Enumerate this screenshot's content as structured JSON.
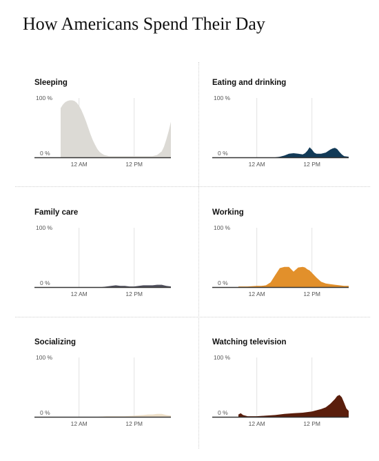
{
  "title": "How Americans Spend Their Day",
  "colors": {
    "axis": "#333333",
    "grid": "#e2e2e2",
    "tick_text": "#555555"
  },
  "chart_data": [
    {
      "type": "area",
      "title": "Sleeping",
      "color": "#dcdad5",
      "ylim": [
        0,
        100
      ],
      "y_tick_labels": [
        "100 %",
        "0 %"
      ],
      "x_tick_labels": [
        "12 AM",
        "12 PM"
      ],
      "x_ticks_hours": [
        0,
        12
      ],
      "x_range_hours": [
        -4,
        20
      ],
      "grid": "vertical-at-ticks",
      "x": [
        -4,
        -3.5,
        -3,
        -2.5,
        -2,
        -1.5,
        -1,
        -0.5,
        0,
        0.5,
        1,
        1.5,
        2,
        2.5,
        3,
        3.5,
        4,
        4.5,
        5,
        5.5,
        6,
        6.5,
        7,
        7.5,
        8,
        8.5,
        9,
        9.5,
        10,
        10.5,
        11,
        11.5,
        12,
        13,
        14,
        15,
        16,
        17,
        18,
        18.5,
        19,
        19.5,
        20
      ],
      "values": [
        83,
        89,
        93,
        95,
        96,
        96,
        95,
        92,
        87,
        80,
        71,
        61,
        50,
        39,
        29,
        21,
        14,
        9,
        6,
        4,
        3,
        2,
        2,
        2,
        2,
        2,
        2,
        2,
        2,
        2,
        2,
        2,
        2,
        2,
        2,
        2,
        2,
        4,
        10,
        18,
        30,
        44,
        60
      ]
    },
    {
      "type": "area",
      "title": "Eating and drinking",
      "color": "#123a57",
      "ylim": [
        0,
        100
      ],
      "y_tick_labels": [
        "100 %",
        "0 %"
      ],
      "x_tick_labels": [
        "12 AM",
        "12 PM"
      ],
      "x_ticks_hours": [
        0,
        12
      ],
      "x_range_hours": [
        -4,
        20
      ],
      "grid": "vertical-at-ticks",
      "x": [
        -4,
        -3,
        -2,
        -1,
        0,
        1,
        2,
        3,
        4,
        5,
        6,
        7,
        8,
        9,
        10,
        10.5,
        11,
        11.5,
        12,
        12.5,
        13,
        13.5,
        14,
        15,
        16,
        16.5,
        17,
        17.5,
        18,
        18.5,
        19,
        20
      ],
      "values": [
        0,
        0,
        0,
        0,
        0,
        0,
        0,
        0,
        0,
        1,
        3,
        6,
        7,
        6,
        5,
        7,
        11,
        17,
        13,
        8,
        6,
        6,
        6,
        8,
        13,
        15,
        16,
        14,
        9,
        5,
        2,
        1
      ]
    },
    {
      "type": "area",
      "title": "Family care",
      "color": "#52525f",
      "ylim": [
        0,
        100
      ],
      "y_tick_labels": [
        "100 %",
        "0 %"
      ],
      "x_tick_labels": [
        "12 AM",
        "12 PM"
      ],
      "x_ticks_hours": [
        0,
        12
      ],
      "x_range_hours": [
        -4,
        20
      ],
      "grid": "vertical-at-ticks",
      "x": [
        -4,
        -2,
        0,
        2,
        4,
        5,
        6,
        7,
        8,
        9,
        10,
        11,
        12,
        13,
        14,
        15,
        16,
        17,
        18,
        19,
        20
      ],
      "values": [
        0,
        0,
        0,
        0,
        0,
        0,
        1,
        2,
        3,
        2,
        2,
        1,
        1,
        2,
        3,
        3,
        3,
        4,
        4,
        2,
        1
      ]
    },
    {
      "type": "area",
      "title": "Working",
      "color": "#e2902b",
      "ylim": [
        0,
        100
      ],
      "y_tick_labels": [
        "100 %",
        "0 %"
      ],
      "x_tick_labels": [
        "12 AM",
        "12 PM"
      ],
      "x_ticks_hours": [
        0,
        12
      ],
      "x_range_hours": [
        -4,
        20
      ],
      "grid": "vertical-at-ticks",
      "x": [
        -4,
        -2,
        0,
        1,
        2,
        3,
        4,
        5,
        6,
        7,
        8,
        9,
        10,
        10.5,
        11,
        11.5,
        12,
        13,
        14,
        15,
        16,
        17,
        18,
        19,
        20
      ],
      "values": [
        1,
        1,
        2,
        2,
        3,
        8,
        20,
        32,
        34,
        34,
        26,
        33,
        34,
        33,
        30,
        28,
        24,
        16,
        9,
        6,
        5,
        4,
        3,
        2,
        2
      ]
    },
    {
      "type": "area",
      "title": "Socializing",
      "color": "#eee0c9",
      "ylim": [
        0,
        100
      ],
      "y_tick_labels": [
        "100 %",
        "0 %"
      ],
      "x_tick_labels": [
        "12 AM",
        "12 PM"
      ],
      "x_ticks_hours": [
        0,
        12
      ],
      "x_range_hours": [
        -4,
        20
      ],
      "grid": "vertical-at-ticks",
      "x": [
        -4,
        -2,
        0,
        2,
        4,
        6,
        8,
        10,
        12,
        14,
        15,
        16,
        17,
        18,
        19,
        20
      ],
      "values": [
        0,
        0,
        0,
        0,
        0,
        1,
        1,
        1,
        2,
        3,
        4,
        4,
        5,
        5,
        3,
        2
      ]
    },
    {
      "type": "area",
      "title": "Watching television",
      "color": "#5a1e0c",
      "ylim": [
        0,
        100
      ],
      "y_tick_labels": [
        "100 %",
        "0 %"
      ],
      "x_tick_labels": [
        "12 AM",
        "12 PM"
      ],
      "x_ticks_hours": [
        0,
        12
      ],
      "x_range_hours": [
        -4,
        20
      ],
      "grid": "vertical-at-ticks",
      "x": [
        -4,
        -3.5,
        -3,
        -2,
        0,
        2,
        4,
        6,
        8,
        10,
        11,
        12,
        13,
        14,
        15,
        16,
        17,
        17.5,
        18,
        18.5,
        19,
        19.5,
        20
      ],
      "values": [
        4,
        6,
        3,
        1,
        1,
        2,
        3,
        5,
        6,
        7,
        8,
        9,
        11,
        13,
        16,
        22,
        30,
        35,
        37,
        33,
        24,
        14,
        10
      ]
    }
  ]
}
